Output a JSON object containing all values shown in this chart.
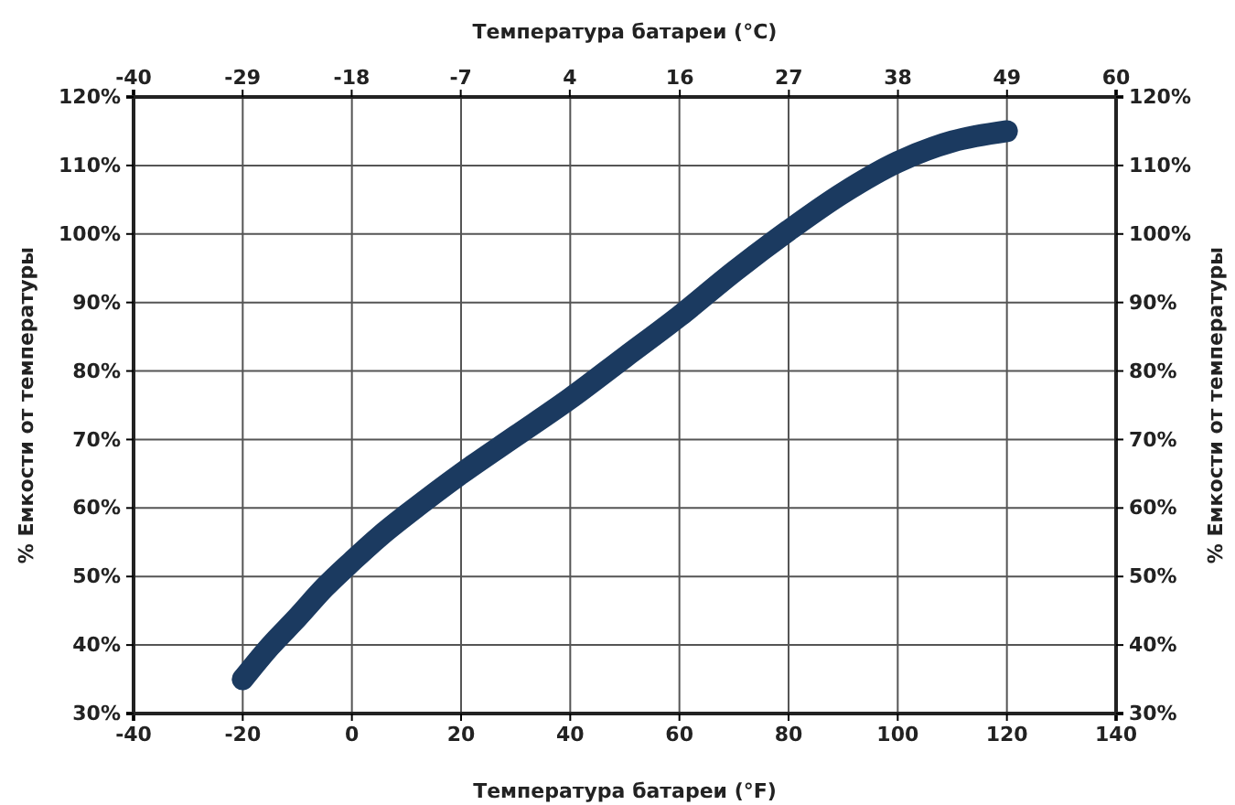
{
  "chart_data": {
    "type": "line",
    "xlabel": "Температура батареи (°F)",
    "x2label": "Температура батареи (°C)",
    "ylabel": "% Емкости от температуры",
    "y2label": "% Емкости от температуры",
    "x": [
      -20,
      -15,
      -10,
      -5,
      0,
      5,
      10,
      20,
      30,
      40,
      50,
      60,
      70,
      80,
      90,
      100,
      110,
      120
    ],
    "series": [
      {
        "color": "#1b3a60",
        "values": [
          35,
          39.8,
          44,
          48.4,
          52.2,
          55.8,
          59,
          65,
          70.5,
          76,
          82,
          88,
          94.5,
          100.5,
          106,
          110.5,
          113.5,
          115
        ]
      }
    ],
    "xlim": [
      -40,
      140
    ],
    "xticks": [
      -40,
      -20,
      0,
      20,
      40,
      60,
      80,
      100,
      120,
      140
    ],
    "x2lim": [
      -40,
      60
    ],
    "x2ticks": [
      -40,
      {
        "value": -28.9,
        "label": "-29"
      },
      {
        "value": -17.8,
        "label": "-18"
      },
      {
        "value": -6.7,
        "label": "-7"
      },
      {
        "value": 4.4,
        "label": "4"
      },
      {
        "value": 15.6,
        "label": "16"
      },
      {
        "value": 26.7,
        "label": "27"
      },
      {
        "value": 37.8,
        "label": "38"
      },
      {
        "value": 48.9,
        "label": "49"
      },
      60
    ],
    "ylim": [
      30,
      120
    ],
    "yticks": [
      {
        "value": 30,
        "label": "30%"
      },
      {
        "value": 40,
        "label": "40%"
      },
      {
        "value": 50,
        "label": "50%"
      },
      {
        "value": 60,
        "label": "60%"
      },
      {
        "value": 70,
        "label": "70%"
      },
      {
        "value": 80,
        "label": "80%"
      },
      {
        "value": 90,
        "label": "90%"
      },
      {
        "value": 100,
        "label": "100%"
      },
      {
        "value": 110,
        "label": "110%"
      },
      {
        "value": 120,
        "label": "120%"
      }
    ],
    "y2lim": [
      30,
      120
    ],
    "y2ticks": [
      {
        "value": 30,
        "label": "30%"
      },
      {
        "value": 40,
        "label": "40%"
      },
      {
        "value": 50,
        "label": "50%"
      },
      {
        "value": 60,
        "label": "60%"
      },
      {
        "value": 70,
        "label": "70%"
      },
      {
        "value": 80,
        "label": "80%"
      },
      {
        "value": 90,
        "label": "90%"
      },
      {
        "value": 100,
        "label": "100%"
      },
      {
        "value": 110,
        "label": "110%"
      },
      {
        "value": 120,
        "label": "120%"
      }
    ],
    "grid": true,
    "line_style": "solid"
  }
}
